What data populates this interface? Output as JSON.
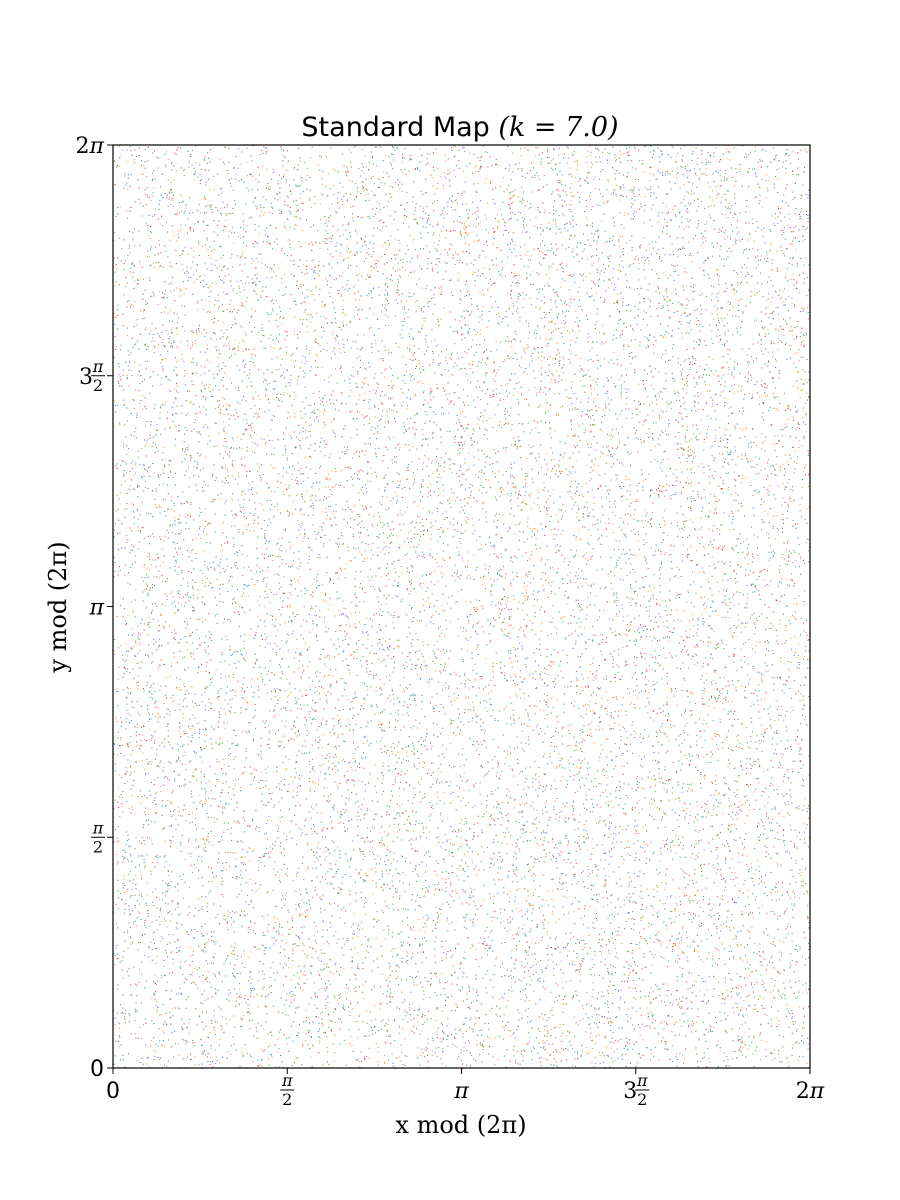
{
  "chart_data": {
    "type": "scatter",
    "title": "Standard Map (k = 7.0)",
    "title_parts": {
      "prefix": "Standard Map ",
      "math": "(k = 7.0)"
    },
    "parameter_k": 7.0,
    "xlabel": "x mod (2π)",
    "ylabel": "y mod (2π)",
    "xlim": [
      0,
      6.283185307
    ],
    "ylim": [
      0,
      6.283185307
    ],
    "x_ticks": [
      {
        "value": 0,
        "label": "0"
      },
      {
        "value": 1.570796327,
        "label": "π/2"
      },
      {
        "value": 3.141592654,
        "label": "π"
      },
      {
        "value": 4.71238898,
        "label": "3π/2"
      },
      {
        "value": 6.283185307,
        "label": "2π"
      }
    ],
    "y_ticks": [
      {
        "value": 0,
        "label": "0"
      },
      {
        "value": 1.570796327,
        "label": "π/2"
      },
      {
        "value": 3.141592654,
        "label": "π"
      },
      {
        "value": 4.71238898,
        "label": "3π/2"
      },
      {
        "value": 6.283185307,
        "label": "2π"
      }
    ],
    "grid": false,
    "legend": "none",
    "series": [
      {
        "color": "#1f77b4"
      },
      {
        "color": "#ff7f0e"
      },
      {
        "color": "#2ca02c"
      },
      {
        "color": "#d62728"
      },
      {
        "color": "#9467bd"
      }
    ],
    "description_of_points": "chaotic sea of orbit points filling the torus uniformly"
  }
}
